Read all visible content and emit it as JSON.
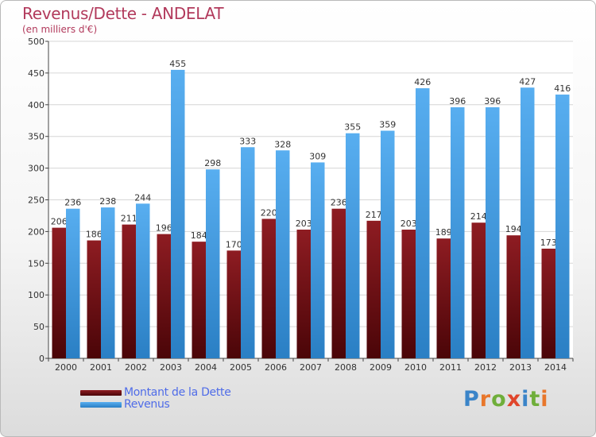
{
  "header": {
    "title": "Revenus/Dette - ANDELAT",
    "subtitle": "(en milliers d'€)"
  },
  "legend": {
    "items": [
      {
        "label": "Montant de la Dette",
        "color": "#7a0c12"
      },
      {
        "label": "Revenus",
        "color": "#3a9be3"
      }
    ]
  },
  "logo": {
    "text": "Proxiti",
    "letters": [
      {
        "ch": "P",
        "color": "#3a84c8"
      },
      {
        "ch": "r",
        "color": "#e8762b"
      },
      {
        "ch": "o",
        "color": "#6fae3a"
      },
      {
        "ch": "x",
        "color": "#e0452b"
      },
      {
        "ch": "i",
        "color": "#3a84c8"
      },
      {
        "ch": "t",
        "color": "#6fae3a"
      },
      {
        "ch": "i",
        "color": "#e8762b"
      }
    ]
  },
  "chart_data": {
    "type": "bar",
    "title": "Revenus/Dette - ANDELAT",
    "subtitle": "(en milliers d'€)",
    "categories": [
      "2000",
      "2001",
      "2002",
      "2003",
      "2004",
      "2005",
      "2006",
      "2007",
      "2008",
      "2009",
      "2010",
      "2011",
      "2012",
      "2013",
      "2014"
    ],
    "series": [
      {
        "name": "Montant de la Dette",
        "color": "#7a0c12",
        "values": [
          206,
          186,
          211,
          196,
          184,
          170,
          220,
          203,
          236,
          217,
          203,
          189,
          214,
          194,
          173
        ]
      },
      {
        "name": "Revenus",
        "color": "#3a9be3",
        "values": [
          236,
          238,
          244,
          455,
          298,
          333,
          328,
          309,
          355,
          359,
          426,
          396,
          396,
          427,
          416
        ]
      }
    ],
    "ylim": [
      0,
      500
    ],
    "yticks": [
      0,
      50,
      100,
      150,
      200,
      250,
      300,
      350,
      400,
      450,
      500
    ],
    "grid": true,
    "legend_position": "bottom-left"
  }
}
